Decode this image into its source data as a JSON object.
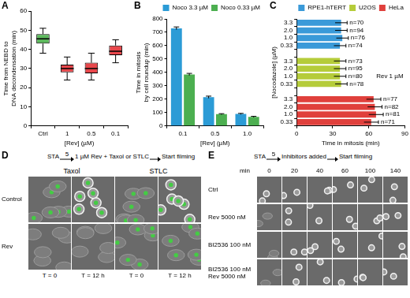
{
  "chart_data": [
    {
      "panel": "A",
      "type": "box",
      "ylabel": [
        "Time from NEBD to",
        "DNA decondensation (min)"
      ],
      "xlabel": "[Rev] (µM)",
      "categories": [
        "Ctrl",
        "1",
        "0.5",
        "0.1"
      ],
      "boxes": [
        {
          "min": 38,
          "q1": 43,
          "median": 45.5,
          "q3": 48,
          "max": 51
        },
        {
          "min": 24,
          "q1": 28,
          "median": 30,
          "q3": 32,
          "max": 36
        },
        {
          "min": 24,
          "q1": 27.5,
          "median": 30,
          "q3": 33,
          "max": 38
        },
        {
          "min": 33,
          "q1": 37,
          "median": 39,
          "q3": 42,
          "max": 45
        }
      ],
      "colors": [
        "#5cb85c",
        "#e8474b",
        "#e8474b",
        "#e8474b"
      ],
      "ylim": [
        0,
        60
      ],
      "yticks": [
        0,
        10,
        20,
        30,
        40,
        50,
        60
      ],
      "grid": false
    },
    {
      "panel": "B",
      "type": "bar",
      "ylabel": [
        "Time in mitosis",
        "by cell roundup (min)"
      ],
      "xlabel": "[Rev] (µM)",
      "categories": [
        "0.1",
        "0.5",
        "1.0"
      ],
      "series": [
        {
          "name": "Noco 3.3 µM",
          "color": "#2b9bd6",
          "values": [
            730,
            215,
            90
          ],
          "errors": [
            10,
            8,
            4
          ]
        },
        {
          "name": "Noco 0.33 µM",
          "color": "#4caf50",
          "values": [
            385,
            88,
            68
          ],
          "errors": [
            8,
            4,
            4
          ]
        }
      ],
      "ylim": [
        0,
        800
      ],
      "yticks": [
        0,
        100,
        200,
        300,
        400,
        500,
        600,
        700,
        800
      ],
      "grid": false,
      "legend": "upper right"
    },
    {
      "panel": "C",
      "type": "bar",
      "orientation": "horizontal",
      "ylabel": "[Nocodazole] (µM)",
      "xlabel": "Time in mitosis (min)",
      "annotation": "Rev 1 µM",
      "categories": [
        "3.3",
        "2.0",
        "1.0",
        "0.33",
        null,
        "3.3",
        "2.0",
        "1.0",
        "0.33",
        null,
        "3.3",
        "2.0",
        "1.0",
        "0.33"
      ],
      "series": [
        {
          "name": "RPE1-hTERT",
          "color": "#3a9ad9",
          "values": [
            37,
            37,
            38,
            36,
            null,
            null,
            null,
            null,
            null,
            null,
            null,
            null,
            null,
            null
          ],
          "errors": [
            5,
            5,
            5,
            5,
            null,
            null,
            null,
            null,
            null,
            null,
            null,
            null,
            null,
            null
          ],
          "n_labels": [
            "n=70",
            "n=94",
            "n=76",
            "n=74",
            null,
            null,
            null,
            null,
            null,
            null,
            null,
            null,
            null,
            null
          ]
        },
        {
          "name": "U2OS",
          "color": "#b5cc3a",
          "values": [
            null,
            null,
            null,
            null,
            null,
            36,
            36,
            36,
            37,
            null,
            null,
            null,
            null,
            null
          ],
          "errors": [
            null,
            null,
            null,
            null,
            null,
            5,
            5,
            5,
            5,
            null,
            null,
            null,
            null,
            null
          ],
          "n_labels": [
            null,
            null,
            null,
            null,
            null,
            "n=73",
            "n=95",
            "n=80",
            "n=78",
            null,
            null,
            null,
            null,
            null
          ]
        },
        {
          "name": "HeLa",
          "color": "#e0403c",
          "values": [
            null,
            null,
            null,
            null,
            null,
            null,
            null,
            null,
            null,
            null,
            64,
            65,
            66,
            62
          ],
          "errors": [
            null,
            null,
            null,
            null,
            null,
            null,
            null,
            null,
            null,
            null,
            6,
            6,
            6,
            6
          ],
          "n_labels": [
            null,
            null,
            null,
            null,
            null,
            null,
            null,
            null,
            null,
            null,
            "n=77",
            "n=82",
            "n=81",
            "n=71"
          ]
        }
      ],
      "xlim": [
        0,
        90
      ],
      "xticks": [
        0,
        30,
        60,
        90
      ],
      "grid": false,
      "legend": "upper right"
    }
  ],
  "image_panels": [
    {
      "panel": "D",
      "protocol": {
        "start": "STA",
        "duration": "5",
        "treatment": "1 µM Rev + Taxol or STLC",
        "end": "Start filming"
      },
      "columns": [
        "Taxol",
        "STLC"
      ],
      "rows": [
        "Control",
        "Rev"
      ],
      "timepoints": [
        "T = 0",
        "T = 12 h"
      ]
    },
    {
      "panel": "E",
      "protocol": {
        "start": "STA",
        "duration": "5",
        "treatment": "Inhibitors added",
        "end": "Start filming"
      },
      "time_unit": "min",
      "timepoints": [
        0,
        20,
        40,
        60,
        100,
        140
      ],
      "rows": [
        "Ctrl",
        "Rev 5000 nM",
        "BI2536 100 nM",
        [
          "BI2536 100 nM",
          "Rev 5000 nM"
        ]
      ]
    }
  ]
}
